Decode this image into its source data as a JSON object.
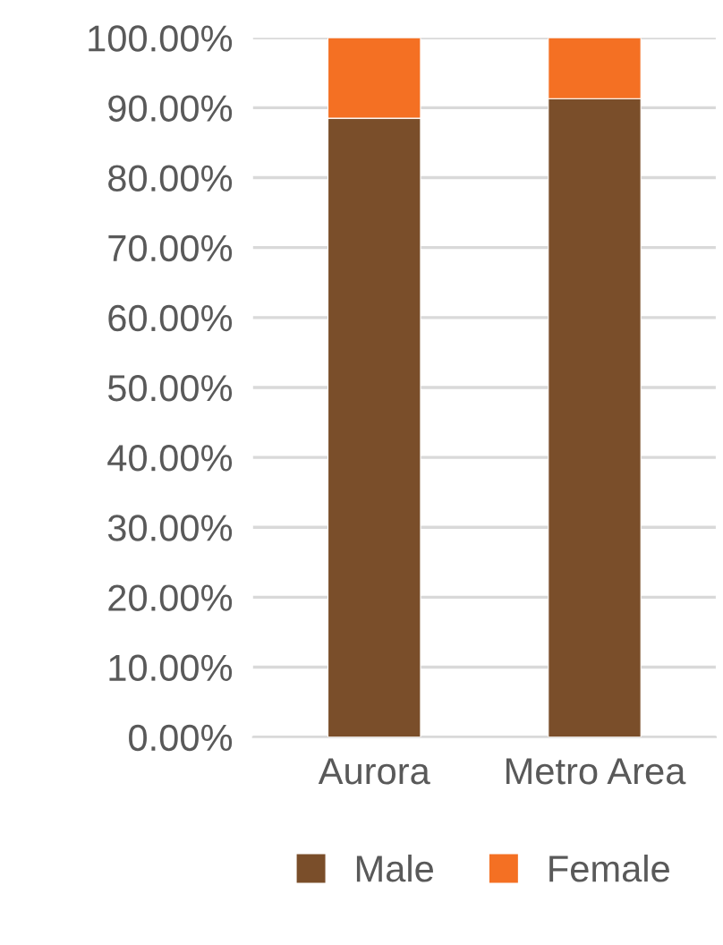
{
  "chart_data": {
    "type": "bar",
    "stacked": true,
    "categories": [
      "Aurora",
      "Metro Area"
    ],
    "series": [
      {
        "name": "Male",
        "color": "#7a4e2a",
        "values": [
          88.5,
          91.3
        ]
      },
      {
        "name": "Female",
        "color": "#f47023",
        "values": [
          11.5,
          8.7
        ]
      }
    ],
    "ylim": [
      0,
      100
    ],
    "yticks": [
      {
        "value": 0,
        "label": "0.00%"
      },
      {
        "value": 10,
        "label": "10.00%"
      },
      {
        "value": 20,
        "label": "20.00%"
      },
      {
        "value": 30,
        "label": "30.00%"
      },
      {
        "value": 40,
        "label": "40.00%"
      },
      {
        "value": 50,
        "label": "50.00%"
      },
      {
        "value": 60,
        "label": "60.00%"
      },
      {
        "value": 70,
        "label": "70.00%"
      },
      {
        "value": 80,
        "label": "80.00%"
      },
      {
        "value": 90,
        "label": "90.00%"
      },
      {
        "value": 100,
        "label": "100.00%"
      }
    ],
    "grid": "y",
    "legend": "bottom"
  }
}
